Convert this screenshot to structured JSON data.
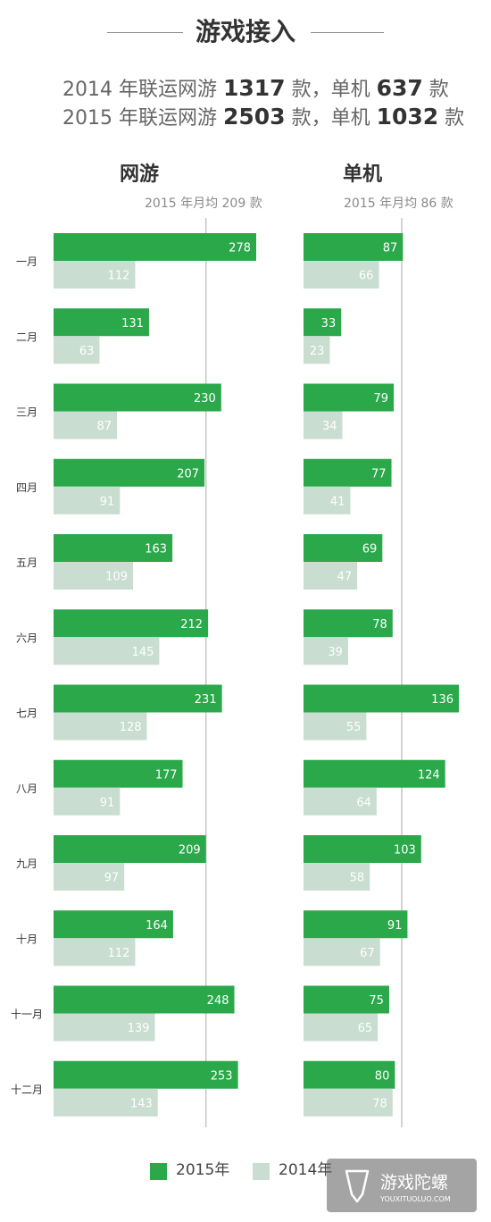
{
  "header": {
    "title": "游戏接入",
    "line1": {
      "pre": "2014 年联运网游 ",
      "n1": "1317",
      "mid": " 款，单机 ",
      "n2": "637",
      "post": " 款"
    },
    "line2": {
      "pre": "2015 年联运网游 ",
      "n1": "2503",
      "mid": " 款，单机 ",
      "n2": "1032",
      "post": " 款"
    }
  },
  "colors": {
    "y2015": "#2aa84a",
    "y2014": "#c9ddd1",
    "avg_line": "#c4c4c4",
    "bar_text": "#ffffff"
  },
  "chart_data": [
    {
      "type": "bar",
      "orientation": "horizontal",
      "title": "网游",
      "subtitle": "2015 年月均 209 款",
      "reference_line": 209,
      "categories": [
        "一月",
        "二月",
        "三月",
        "四月",
        "五月",
        "六月",
        "七月",
        "八月",
        "九月",
        "十月",
        "十一月",
        "十二月"
      ],
      "series": [
        {
          "name": "2015年",
          "values": [
            278,
            131,
            230,
            207,
            163,
            212,
            231,
            177,
            209,
            164,
            248,
            253
          ]
        },
        {
          "name": "2014年",
          "values": [
            112,
            63,
            87,
            91,
            109,
            145,
            128,
            91,
            97,
            112,
            139,
            143
          ]
        }
      ]
    },
    {
      "type": "bar",
      "orientation": "horizontal",
      "title": "单机",
      "subtitle": "2015 年月均 86 款",
      "reference_line": 86,
      "categories": [
        "一月",
        "二月",
        "三月",
        "四月",
        "五月",
        "六月",
        "七月",
        "八月",
        "九月",
        "十月",
        "十一月",
        "十二月"
      ],
      "series": [
        {
          "name": "2015年",
          "values": [
            87,
            33,
            79,
            77,
            69,
            78,
            136,
            124,
            103,
            91,
            75,
            80
          ]
        },
        {
          "name": "2014年",
          "values": [
            66,
            23,
            34,
            41,
            47,
            39,
            55,
            64,
            58,
            67,
            65,
            78
          ]
        }
      ]
    }
  ],
  "legend": {
    "y2015": "2015年",
    "y2014": "2014年"
  },
  "watermark": {
    "name": "游戏陀螺",
    "url": "YOUXITUOLUO.COM"
  }
}
